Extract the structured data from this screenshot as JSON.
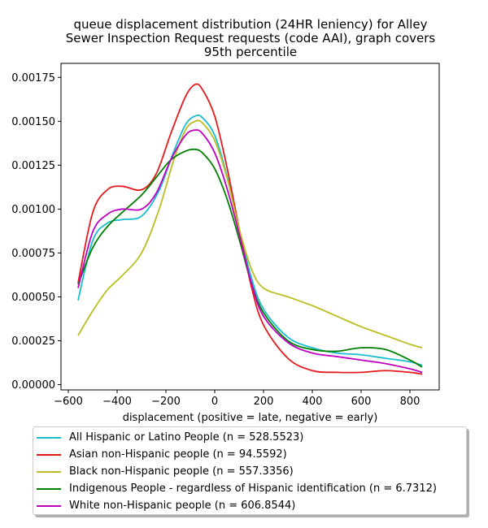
{
  "chart_data": {
    "type": "line",
    "title": "queue displacement distribution (24HR leniency) for Alley Sewer Inspection Request  requests (code AAI), graph covers 95th percentile",
    "title_lines": [
      "queue displacement distribution (24HR leniency) for Alley",
      "Sewer Inspection Request  requests (code AAI), graph covers",
      "95th percentile"
    ],
    "xlabel": "displacement (positive = late, negative = early)",
    "ylabel": "",
    "xlim": [
      -630,
      920
    ],
    "ylim": [
      -3e-05,
      0.00183
    ],
    "x_ticks": [
      -600,
      -400,
      -200,
      0,
      200,
      400,
      600,
      800
    ],
    "x_tick_labels": [
      "−600",
      "−400",
      "−200",
      "0",
      "200",
      "400",
      "600",
      "800"
    ],
    "y_ticks": [
      0,
      0.00025,
      0.0005,
      0.00075,
      0.001,
      0.00125,
      0.0015,
      0.00175
    ],
    "y_tick_labels": [
      "0.00000",
      "0.00025",
      "0.00050",
      "0.00075",
      "0.00100",
      "0.00125",
      "0.00150",
      "0.00175"
    ],
    "legend_position": "below",
    "grid": false,
    "series": [
      {
        "name": "All Hispanic or Latino People (n = 528.5523)",
        "color": "#17becf",
        "points": [
          [
            -560,
            0.00048
          ],
          [
            -500,
            0.00082
          ],
          [
            -440,
            0.00092
          ],
          [
            -380,
            0.00094
          ],
          [
            -300,
            0.00096
          ],
          [
            -230,
            0.0011
          ],
          [
            -170,
            0.00132
          ],
          [
            -120,
            0.00148
          ],
          [
            -80,
            0.00153
          ],
          [
            -50,
            0.00152
          ],
          [
            0,
            0.00142
          ],
          [
            50,
            0.00119
          ],
          [
            100,
            0.00089
          ],
          [
            150,
            0.00061
          ],
          [
            200,
            0.00043
          ],
          [
            300,
            0.00027
          ],
          [
            400,
            0.00021
          ],
          [
            500,
            0.00018
          ],
          [
            600,
            0.00017
          ],
          [
            700,
            0.00015
          ],
          [
            800,
            0.00013
          ],
          [
            850,
            0.00011
          ]
        ]
      },
      {
        "name": "Asian non-Hispanic people (n = 94.5592)",
        "color": "#e41a1c",
        "points": [
          [
            -560,
            0.00058
          ],
          [
            -500,
            0.00098
          ],
          [
            -440,
            0.00111
          ],
          [
            -380,
            0.00113
          ],
          [
            -300,
            0.00111
          ],
          [
            -240,
            0.0012
          ],
          [
            -180,
            0.00143
          ],
          [
            -120,
            0.00164
          ],
          [
            -80,
            0.00171
          ],
          [
            -50,
            0.00168
          ],
          [
            0,
            0.00153
          ],
          [
            50,
            0.00124
          ],
          [
            100,
            0.00089
          ],
          [
            150,
            0.00056
          ],
          [
            200,
            0.00034
          ],
          [
            300,
            0.00015
          ],
          [
            400,
            8e-05
          ],
          [
            500,
            7e-05
          ],
          [
            600,
            7e-05
          ],
          [
            700,
            8e-05
          ],
          [
            800,
            7e-05
          ],
          [
            850,
            6e-05
          ]
        ]
      },
      {
        "name": "Black non-Hispanic people (n = 557.3356)",
        "color": "#bcbd22",
        "points": [
          [
            -560,
            0.00028
          ],
          [
            -500,
            0.00042
          ],
          [
            -440,
            0.00054
          ],
          [
            -380,
            0.00062
          ],
          [
            -300,
            0.00075
          ],
          [
            -230,
            0.00099
          ],
          [
            -170,
            0.00127
          ],
          [
            -120,
            0.00145
          ],
          [
            -80,
            0.0015
          ],
          [
            -50,
            0.00149
          ],
          [
            0,
            0.00139
          ],
          [
            50,
            0.00118
          ],
          [
            100,
            0.00089
          ],
          [
            150,
            0.00066
          ],
          [
            200,
            0.00055
          ],
          [
            300,
            0.0005
          ],
          [
            400,
            0.00045
          ],
          [
            500,
            0.00039
          ],
          [
            600,
            0.00033
          ],
          [
            700,
            0.00028
          ],
          [
            800,
            0.00023
          ],
          [
            850,
            0.00021
          ]
        ]
      },
      {
        "name": "Indigenous People - regardless of Hispanic identification (n = 6.7312)",
        "color": "#008000",
        "points": [
          [
            -560,
            0.00057
          ],
          [
            -500,
            0.00078
          ],
          [
            -440,
            0.0009
          ],
          [
            -380,
            0.00098
          ],
          [
            -300,
            0.00108
          ],
          [
            -240,
            0.00118
          ],
          [
            -180,
            0.00128
          ],
          [
            -120,
            0.00133
          ],
          [
            -80,
            0.00134
          ],
          [
            -50,
            0.00132
          ],
          [
            0,
            0.00123
          ],
          [
            50,
            0.00106
          ],
          [
            100,
            0.00083
          ],
          [
            150,
            0.00058
          ],
          [
            200,
            0.00041
          ],
          [
            300,
            0.00025
          ],
          [
            400,
            0.0002
          ],
          [
            500,
            0.00019
          ],
          [
            600,
            0.00021
          ],
          [
            700,
            0.0002
          ],
          [
            800,
            0.00014
          ],
          [
            850,
            0.0001
          ]
        ]
      },
      {
        "name": "White non-Hispanic people (n = 606.8544)",
        "color": "#c000c0",
        "points": [
          [
            -560,
            0.00055
          ],
          [
            -500,
            0.00087
          ],
          [
            -440,
            0.00097
          ],
          [
            -380,
            0.001
          ],
          [
            -300,
            0.001
          ],
          [
            -240,
            0.00109
          ],
          [
            -180,
            0.00128
          ],
          [
            -120,
            0.00142
          ],
          [
            -80,
            0.00145
          ],
          [
            -50,
            0.00143
          ],
          [
            0,
            0.00132
          ],
          [
            50,
            0.00112
          ],
          [
            100,
            0.00086
          ],
          [
            150,
            0.00058
          ],
          [
            200,
            0.00039
          ],
          [
            300,
            0.00024
          ],
          [
            400,
            0.00018
          ],
          [
            500,
            0.00016
          ],
          [
            600,
            0.00014
          ],
          [
            700,
            0.00012
          ],
          [
            800,
            9e-05
          ],
          [
            850,
            7e-05
          ]
        ]
      }
    ]
  }
}
